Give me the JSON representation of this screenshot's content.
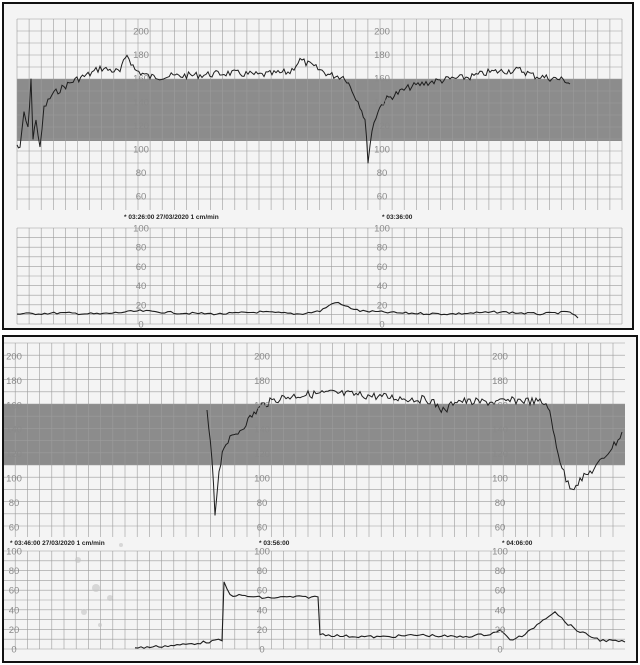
{
  "colors": {
    "paper": "#f4f4f4",
    "grid": "#9c9c9c",
    "band": "#8c8c8c",
    "trace": "#1e1e1e",
    "frame": "#111111"
  },
  "strip1": {
    "fhr_scale_labels": [
      "200",
      "180",
      "160",
      "140",
      "120",
      "100",
      "80",
      "60"
    ],
    "toco_scale_labels": [
      "100",
      "80",
      "60",
      "40",
      "20",
      "0"
    ],
    "stamp_start": "* 03:26:00  27/03/2020  1 cm/min",
    "stamp_mid": "* 03:36:00"
  },
  "strip2": {
    "fhr_scale_labels": [
      "200",
      "180",
      "160",
      "140",
      "120",
      "100",
      "80",
      "60"
    ],
    "toco_scale_labels": [
      "100",
      "80",
      "60",
      "40",
      "20",
      "0"
    ],
    "stamp_start": "* 03:46:00  27/03/2020  1 cm/min",
    "stamp_mid": "* 03:56:00",
    "stamp_end": "* 04:06:00"
  }
}
